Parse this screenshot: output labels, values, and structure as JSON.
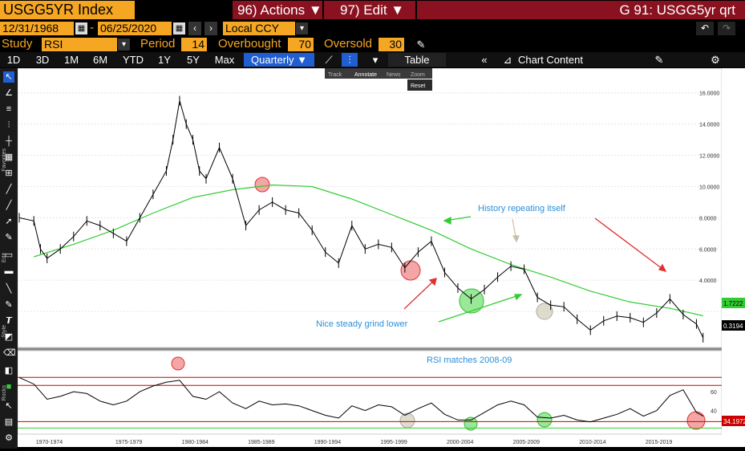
{
  "header": {
    "ticker": "USGG5YR Index",
    "actions_label": "96) Actions ▼",
    "edit_label": "97) Edit ▼",
    "function_title": "G 91: USGG5yr qrt"
  },
  "range": {
    "start_date": "12/31/1968",
    "end_date": "06/25/2020",
    "currency": "Local CCY",
    "separator": "-"
  },
  "study": {
    "study_label": "Study",
    "study_value": "RSI",
    "period_label": "Period",
    "period_value": "14",
    "overbought_label": "Overbought",
    "overbought_value": "70",
    "oversold_label": "Oversold",
    "oversold_value": "30"
  },
  "tabs": [
    "1D",
    "3D",
    "1M",
    "6M",
    "YTD",
    "1Y",
    "5Y",
    "Max"
  ],
  "frequency": "Quarterly ▼",
  "toolbar": {
    "table_label": "Table",
    "chart_content_label": "Chart Content"
  },
  "mini_toolbar": {
    "track": "Track",
    "annotate": "Annotate",
    "news": "News",
    "zoom": "Zoom",
    "reset": "Reset"
  },
  "annotations": {
    "history": "History repeating itself",
    "grind": "Nice steady grind lower",
    "rsi": "RSI matches 2008-09"
  },
  "side_labels": {
    "favorites": "Favorites",
    "edit": "Edit",
    "style": "Style",
    "rocks": "Rocks"
  },
  "chart_data": {
    "type": "line",
    "x_ticks": [
      "1970-1974",
      "1975-1979",
      "1980-1984",
      "1985-1989",
      "1990-1994",
      "1995-1999",
      "2000-2004",
      "2005-2009",
      "2010-2014",
      "2015-2019"
    ],
    "y_ticks": [
      "16.0000",
      "14.0000",
      "12.0000",
      "10.0000",
      "8.0000",
      "6.0000",
      "4.0000"
    ],
    "last_value": "0.3194",
    "ma_value": "1.7222",
    "price": {
      "x": [
        1968.9,
        1970,
        1970.5,
        1971,
        1972,
        1973,
        1974,
        1975,
        1976,
        1977,
        1978,
        1979,
        1980,
        1980.5,
        1981,
        1981.5,
        1982,
        1982.5,
        1983,
        1984,
        1985,
        1986,
        1987,
        1988,
        1989,
        1990,
        1991,
        1992,
        1993,
        1994,
        1995,
        1996,
        1997,
        1998,
        1999,
        2000,
        2001,
        2002,
        2003,
        2004,
        2005,
        2006,
        2007,
        2008,
        2009,
        2010,
        2011,
        2012,
        2013,
        2014,
        2015,
        2016,
        2017,
        2018,
        2019,
        2020,
        2020.5
      ],
      "y": [
        8.0,
        7.8,
        6.0,
        5.4,
        6.0,
        6.8,
        7.8,
        7.5,
        7.0,
        6.5,
        8.0,
        9.5,
        11.0,
        13.0,
        15.5,
        14.0,
        13.0,
        11.0,
        10.5,
        12.5,
        10.5,
        7.5,
        8.5,
        9.0,
        8.5,
        8.3,
        7.2,
        5.8,
        5.1,
        7.5,
        6.0,
        6.3,
        6.1,
        4.8,
        5.8,
        6.5,
        4.5,
        3.5,
        2.8,
        3.4,
        4.2,
        4.9,
        4.7,
        2.9,
        2.4,
        2.3,
        1.5,
        0.8,
        1.4,
        1.7,
        1.6,
        1.3,
        1.9,
        2.8,
        1.8,
        1.2,
        0.32
      ]
    },
    "moving_average": {
      "x": [
        1970,
        1973,
        1976,
        1979,
        1982,
        1985,
        1988,
        1991,
        1994,
        1997,
        2000,
        2003,
        2006,
        2009,
        2012,
        2015,
        2018,
        2020.5
      ],
      "y": [
        5.5,
        6.3,
        7.2,
        8.3,
        9.3,
        9.8,
        10.1,
        10.0,
        9.2,
        8.2,
        7.2,
        6.0,
        5.0,
        4.2,
        3.3,
        2.6,
        2.2,
        1.72
      ]
    },
    "rsi": {
      "x": [
        1968.9,
        1970,
        1971,
        1972,
        1973,
        1974,
        1975,
        1976,
        1977,
        1978,
        1979,
        1980,
        1981,
        1982,
        1983,
        1984,
        1985,
        1986,
        1987,
        1988,
        1989,
        1990,
        1991,
        1992,
        1993,
        1994,
        1995,
        1996,
        1997,
        1998,
        1999,
        2000,
        2001,
        2002,
        2003,
        2004,
        2005,
        2006,
        2007,
        2008,
        2009,
        2010,
        2011,
        2012,
        2013,
        2014,
        2015,
        2016,
        2017,
        2018,
        2019,
        2020,
        2020.5
      ],
      "y": [
        75,
        68,
        52,
        55,
        60,
        58,
        50,
        46,
        50,
        60,
        66,
        70,
        72,
        55,
        52,
        60,
        48,
        42,
        50,
        46,
        47,
        45,
        40,
        35,
        32,
        45,
        40,
        46,
        44,
        35,
        42,
        48,
        36,
        30,
        30,
        38,
        46,
        50,
        46,
        33,
        32,
        35,
        30,
        28,
        32,
        36,
        42,
        34,
        40,
        56,
        62,
        38,
        34.2
      ],
      "overbought": 70,
      "oversold": 30,
      "y_ticks": [
        "60",
        "40"
      ],
      "last_value": "34.1972"
    },
    "colors": {
      "price": "#000000",
      "moving_average": "#33cc33",
      "ob_os_lines": "#cc0000",
      "annotation_text": "#2e8fd8",
      "arrow": "#e03030"
    }
  }
}
